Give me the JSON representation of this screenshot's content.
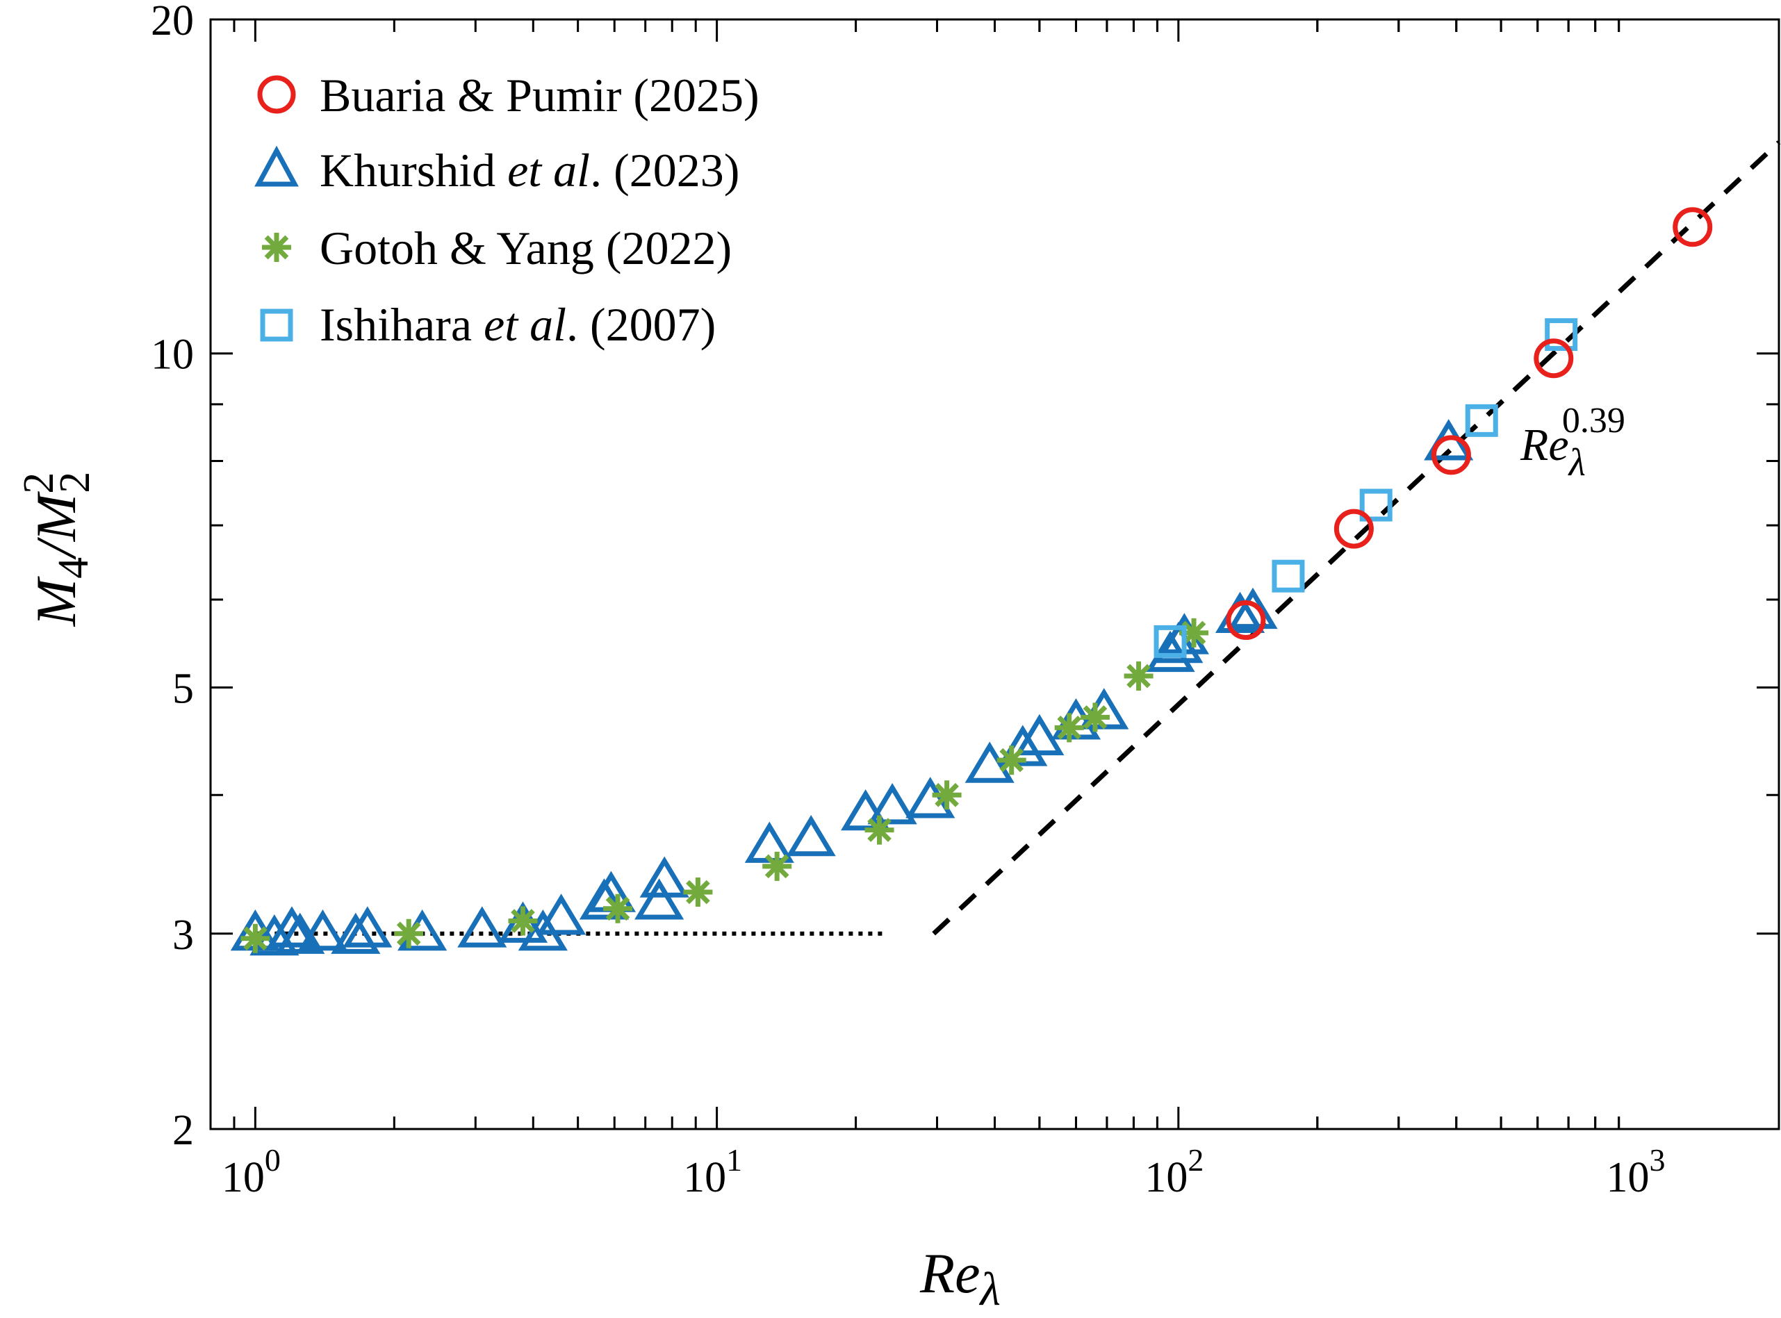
{
  "chart_data": {
    "type": "scatter",
    "xscale": "log",
    "yscale": "log",
    "xlim": [
      0.8,
      2000
    ],
    "ylim": [
      2,
      20
    ],
    "xlabel": {
      "base": "Re",
      "sub": "λ"
    },
    "ylabel": {
      "m4": "M",
      "m4_sub": "4",
      "slash": "/",
      "m2": "M",
      "m2_sub": "2",
      "m2_sup": "2"
    },
    "x_ticks": [
      {
        "value": 1,
        "base": "10",
        "exp": "0"
      },
      {
        "value": 10,
        "base": "10",
        "exp": "1"
      },
      {
        "value": 100,
        "base": "10",
        "exp": "2"
      },
      {
        "value": 1000,
        "base": "10",
        "exp": "3"
      }
    ],
    "y_ticks": [
      {
        "value": 2,
        "label": "2"
      },
      {
        "value": 3,
        "label": "3"
      },
      {
        "value": 5,
        "label": "5"
      },
      {
        "value": 10,
        "label": "10"
      },
      {
        "value": 20,
        "label": "20"
      }
    ],
    "y_minor_ticks": [
      4,
      6,
      7,
      8,
      9
    ],
    "grid": false,
    "legend_position": "top-left",
    "series": [
      {
        "name": "Buaria & Pumir (2025)",
        "name_parts": [
          "Buaria & Pumir (2025)"
        ],
        "marker": "circle",
        "color": "#e8211d",
        "x": [
          140,
          240,
          390,
          650,
          1300
        ],
        "y": [
          5.75,
          6.95,
          8.1,
          9.9,
          13.0
        ]
      },
      {
        "name": "Khurshid et al. (2023)",
        "name_parts": [
          "Khurshid ",
          "et al",
          ". (2023)"
        ],
        "marker": "triangle",
        "color": "#1870b8",
        "x": [
          1.0,
          1.1,
          1.2,
          1.25,
          1.4,
          1.65,
          1.75,
          2.3,
          3.1,
          3.8,
          4.2,
          4.6,
          5.7,
          5.9,
          7.5,
          7.7,
          13,
          16,
          21,
          24,
          29,
          39,
          46,
          50,
          60,
          69,
          96,
          100,
          103,
          136,
          145,
          385
        ],
        "y": [
          3.0,
          2.97,
          3.02,
          2.98,
          3.0,
          2.98,
          3.02,
          3.0,
          3.02,
          3.05,
          3.0,
          3.1,
          3.2,
          3.25,
          3.2,
          3.35,
          3.6,
          3.65,
          3.85,
          3.9,
          3.95,
          4.25,
          4.4,
          4.5,
          4.65,
          4.75,
          5.35,
          5.45,
          5.55,
          5.8,
          5.85,
          8.3
        ]
      },
      {
        "name": "Gotoh & Yang (2022)",
        "name_parts": [
          "Gotoh & Yang (2022)"
        ],
        "marker": "asterisk",
        "color": "#73aa3d",
        "x": [
          1.0,
          2.15,
          3.8,
          6.1,
          9.1,
          13.5,
          22.5,
          31.5,
          43.5,
          58,
          66,
          82,
          108
        ],
        "y": [
          2.97,
          3.0,
          3.08,
          3.16,
          3.27,
          3.45,
          3.72,
          4.0,
          4.3,
          4.6,
          4.7,
          5.12,
          5.6
        ]
      },
      {
        "name": "Ishihara et al. (2007)",
        "name_parts": [
          "Ishihara ",
          "et al",
          ". (2007)"
        ],
        "marker": "square",
        "color": "#4bb0e6",
        "x": [
          96,
          173,
          268,
          454,
          675
        ],
        "y": [
          5.5,
          6.3,
          7.3,
          8.7,
          10.4
        ]
      }
    ],
    "reference_lines": [
      {
        "style": "dotted",
        "x": [
          1.0,
          23
        ],
        "y": [
          3,
          3
        ]
      },
      {
        "style": "dashed",
        "x": [
          29.5,
          2000
        ],
        "y": [
          3.0,
          15.5
        ]
      }
    ],
    "annotations": [
      {
        "base": "Re",
        "sub": "λ",
        "sup": "0.39"
      }
    ]
  }
}
